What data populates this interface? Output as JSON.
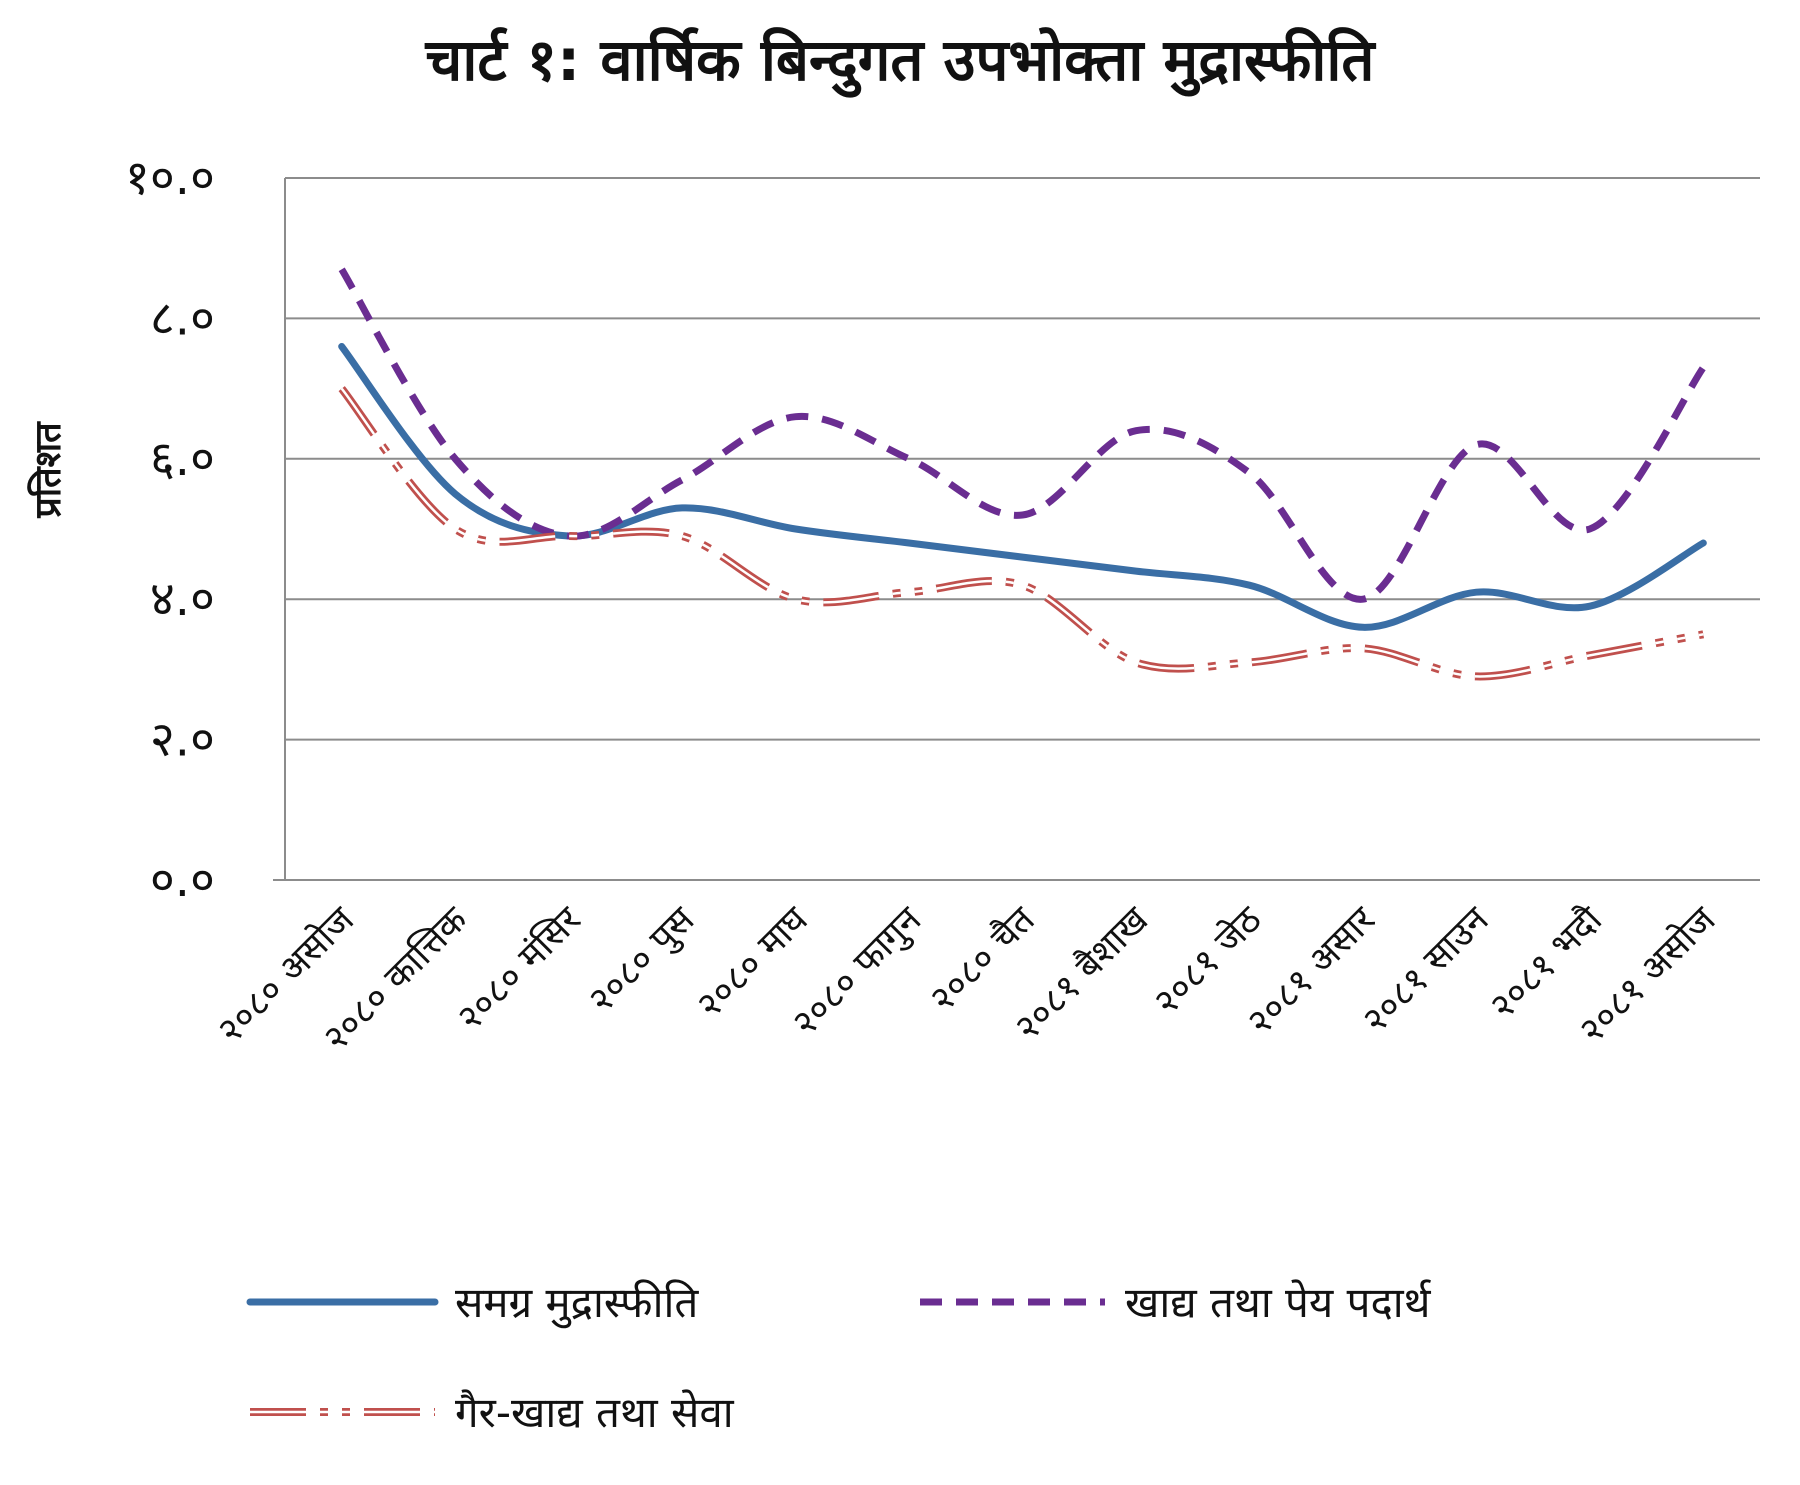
{
  "chart_data": {
    "type": "line",
    "title": "चार्ट १: वार्षिक बिन्दुगत उपभोक्ता मुद्रास्फीति",
    "xlabel": "",
    "ylabel": "प्रतिशत",
    "ylim": [
      0,
      10
    ],
    "yticks": [
      0,
      2,
      4,
      6,
      8,
      10
    ],
    "ytick_labels": [
      "०.०",
      "२.०",
      "४.०",
      "६.०",
      "८.०",
      "१०.०"
    ],
    "grid": true,
    "legend_position": "bottom",
    "categories": [
      "२०८० असोज",
      "२०८० कात्तिक",
      "२०८० मंसिर",
      "२०८० पुस",
      "२०८० माघ",
      "२०८० फागुन",
      "२०८० चैत",
      "२०८१ बैशाख",
      "२०८१ जेठ",
      "२०८१ असार",
      "२०८१ साउन",
      "२०८१ भदौ",
      "२०८१ असोज"
    ],
    "series": [
      {
        "name": "समग्र मुद्रास्फीति",
        "color": "#3a6ea5",
        "style": "solid",
        "values": [
          7.6,
          5.5,
          4.9,
          5.3,
          5.0,
          4.8,
          4.6,
          4.4,
          4.2,
          3.6,
          4.1,
          3.9,
          4.8
        ]
      },
      {
        "name": "खाद्य तथा पेय पदार्थ",
        "color": "#6a2d91",
        "style": "dashed",
        "values": [
          8.7,
          6.0,
          4.9,
          5.7,
          6.6,
          6.0,
          5.2,
          6.4,
          5.8,
          4.0,
          6.2,
          5.0,
          7.3
        ]
      },
      {
        "name": "गैर-खाद्य तथा सेवा",
        "color": "#c0504d",
        "style": "double-dashdot",
        "values": [
          7.0,
          5.0,
          4.9,
          4.9,
          4.0,
          4.1,
          4.2,
          3.1,
          3.1,
          3.3,
          2.9,
          3.2,
          3.5
        ]
      }
    ]
  }
}
